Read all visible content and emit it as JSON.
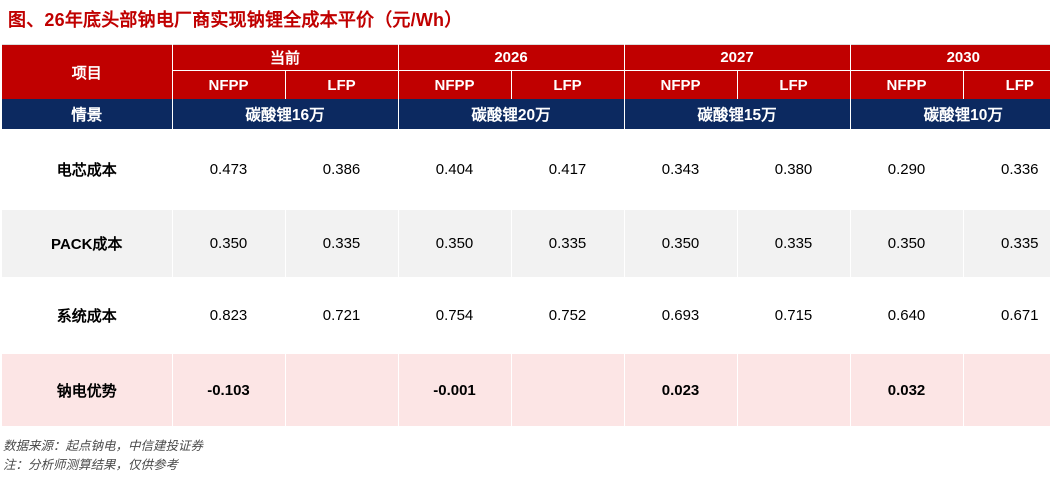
{
  "title": "图、26年底头部钠电厂商实现钠锂全成本平价（元/Wh）",
  "colors": {
    "title_red": "#C00000",
    "header_band_red": "#C00000",
    "scenario_navy": "#0C2960",
    "zebra_gray": "#F2F2F2",
    "advantage_pink": "#FCE5E5"
  },
  "chart_data": {
    "type": "table",
    "title": "图、26年底头部钠电厂商实现钠锂全成本平价（元/Wh）",
    "unit": "元/Wh",
    "row_header": "项目",
    "scenario_row_header": "情景",
    "subcolumns": [
      "NFPP",
      "LFP"
    ],
    "column_groups": [
      {
        "period": "当前",
        "scenario": "碳酸锂16万"
      },
      {
        "period": "2026",
        "scenario": "碳酸锂20万"
      },
      {
        "period": "2027",
        "scenario": "碳酸锂15万"
      },
      {
        "period": "2030",
        "scenario": "碳酸锂10万"
      }
    ],
    "rows": [
      {
        "label": "电芯成本",
        "values": [
          "0.473",
          "0.386",
          "0.404",
          "0.417",
          "0.343",
          "0.380",
          "0.290",
          "0.336"
        ]
      },
      {
        "label": "PACK成本",
        "values": [
          "0.350",
          "0.335",
          "0.350",
          "0.335",
          "0.350",
          "0.335",
          "0.350",
          "0.335"
        ]
      },
      {
        "label": "系统成本",
        "values": [
          "0.823",
          "0.721",
          "0.754",
          "0.752",
          "0.693",
          "0.715",
          "0.640",
          "0.671"
        ]
      },
      {
        "label": "钠电优势",
        "values": [
          "-0.103",
          "",
          "-0.001",
          "",
          "0.023",
          "",
          "0.032",
          ""
        ]
      }
    ]
  },
  "footnotes": [
    "数据来源：起点钠电，中信建投证券",
    "注：分析师测算结果，仅供参考"
  ]
}
